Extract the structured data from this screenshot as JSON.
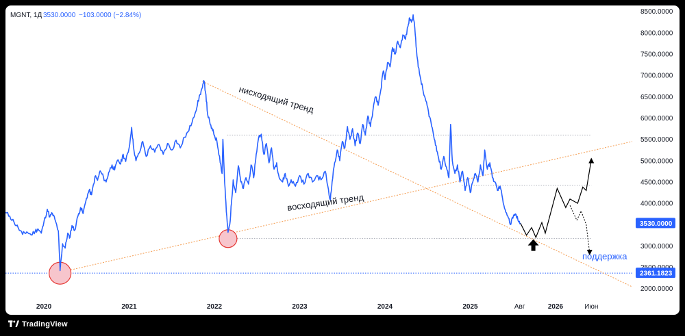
{
  "header": {
    "symbol": "MGNT, 1Д",
    "price": "3530.0000",
    "change": "−103.0000 (−2.84%)"
  },
  "brand": {
    "name": "TradingView"
  },
  "colors": {
    "price_line": "#2962ff",
    "trend_line": "#f5a35c",
    "level_line": "#b2b5be",
    "support_line": "#2962ff",
    "circle_fill": "#f7c5cc",
    "circle_stroke": "#e53935",
    "label_bg": "#2962ff"
  },
  "chart_data": {
    "type": "line",
    "title": "MGNT, 1Д",
    "x_axis": {
      "ticks": [
        {
          "label": "2020",
          "t": 2020.0
        },
        {
          "label": "2021",
          "t": 2021.0
        },
        {
          "label": "2022",
          "t": 2022.0
        },
        {
          "label": "2023",
          "t": 2023.0
        },
        {
          "label": "2024",
          "t": 2024.0
        },
        {
          "label": "2025",
          "t": 2025.0
        },
        {
          "label": "Авг",
          "t": 2025.58
        },
        {
          "label": "2026",
          "t": 2026.0
        },
        {
          "label": "Июн",
          "t": 2026.42
        }
      ],
      "range": [
        2019.55,
        2026.9
      ]
    },
    "y_axis": {
      "ticks": [
        2000,
        2500,
        3000,
        3500,
        4000,
        4500,
        5000,
        5500,
        6000,
        6500,
        7000,
        7500,
        8000,
        8500
      ],
      "tick_format": "0000",
      "range": [
        1850,
        8640
      ],
      "position": "right"
    },
    "grid": false,
    "series": [
      {
        "points": [
          [
            2019.55,
            3780
          ],
          [
            2019.6,
            3700
          ],
          [
            2019.65,
            3560
          ],
          [
            2019.7,
            3420
          ],
          [
            2019.75,
            3270
          ],
          [
            2019.8,
            3330
          ],
          [
            2019.85,
            3260
          ],
          [
            2019.9,
            3350
          ],
          [
            2019.93,
            3400
          ],
          [
            2019.97,
            3300
          ],
          [
            2020.0,
            3550
          ],
          [
            2020.04,
            3860
          ],
          [
            2020.07,
            3680
          ],
          [
            2020.1,
            3760
          ],
          [
            2020.13,
            3620
          ],
          [
            2020.17,
            3350
          ],
          [
            2020.19,
            2420
          ],
          [
            2020.2,
            2650
          ],
          [
            2020.22,
            3050
          ],
          [
            2020.25,
            2950
          ],
          [
            2020.28,
            3300
          ],
          [
            2020.3,
            3180
          ],
          [
            2020.33,
            3480
          ],
          [
            2020.36,
            3360
          ],
          [
            2020.4,
            3700
          ],
          [
            2020.43,
            3900
          ],
          [
            2020.46,
            3760
          ],
          [
            2020.5,
            4120
          ],
          [
            2020.53,
            4300
          ],
          [
            2020.56,
            4200
          ],
          [
            2020.6,
            4630
          ],
          [
            2020.63,
            4540
          ],
          [
            2020.66,
            4760
          ],
          [
            2020.7,
            4600
          ],
          [
            2020.73,
            4500
          ],
          [
            2020.76,
            4720
          ],
          [
            2020.8,
            4900
          ],
          [
            2020.83,
            4780
          ],
          [
            2020.87,
            5020
          ],
          [
            2020.9,
            4920
          ],
          [
            2020.93,
            5150
          ],
          [
            2020.96,
            4980
          ],
          [
            2021.0,
            5300
          ],
          [
            2021.03,
            5780
          ],
          [
            2021.05,
            5350
          ],
          [
            2021.08,
            5000
          ],
          [
            2021.12,
            5180
          ],
          [
            2021.16,
            5450
          ],
          [
            2021.2,
            5100
          ],
          [
            2021.25,
            5350
          ],
          [
            2021.3,
            5200
          ],
          [
            2021.35,
            5380
          ],
          [
            2021.4,
            5150
          ],
          [
            2021.45,
            5400
          ],
          [
            2021.5,
            5250
          ],
          [
            2021.55,
            5480
          ],
          [
            2021.6,
            5300
          ],
          [
            2021.65,
            5550
          ],
          [
            2021.7,
            5700
          ],
          [
            2021.75,
            6000
          ],
          [
            2021.8,
            6300
          ],
          [
            2021.83,
            6550
          ],
          [
            2021.86,
            6720
          ],
          [
            2021.88,
            6860
          ],
          [
            2021.9,
            6550
          ],
          [
            2021.92,
            6100
          ],
          [
            2021.95,
            5850
          ],
          [
            2021.98,
            5700
          ],
          [
            2022.0,
            5600
          ],
          [
            2022.03,
            5450
          ],
          [
            2022.06,
            5100
          ],
          [
            2022.09,
            4700
          ],
          [
            2022.1,
            5500
          ],
          [
            2022.12,
            4500
          ],
          [
            2022.14,
            3800
          ],
          [
            2022.16,
            3320
          ],
          [
            2022.18,
            3500
          ],
          [
            2022.2,
            4000
          ],
          [
            2022.22,
            4550
          ],
          [
            2022.25,
            4250
          ],
          [
            2022.28,
            4880
          ],
          [
            2022.31,
            4500
          ],
          [
            2022.34,
            4350
          ],
          [
            2022.37,
            4600
          ],
          [
            2022.4,
            4450
          ],
          [
            2022.43,
            4900
          ],
          [
            2022.46,
            4600
          ],
          [
            2022.49,
            5150
          ],
          [
            2022.52,
            5550
          ],
          [
            2022.55,
            5620
          ],
          [
            2022.58,
            5150
          ],
          [
            2022.61,
            5400
          ],
          [
            2022.64,
            4950
          ],
          [
            2022.67,
            5300
          ],
          [
            2022.7,
            4800
          ],
          [
            2022.73,
            4950
          ],
          [
            2022.76,
            4600
          ],
          [
            2022.8,
            4500
          ],
          [
            2022.83,
            4700
          ],
          [
            2022.87,
            4400
          ],
          [
            2022.9,
            4550
          ],
          [
            2022.95,
            4400
          ],
          [
            2023.0,
            4650
          ],
          [
            2023.05,
            4450
          ],
          [
            2023.1,
            4700
          ],
          [
            2023.15,
            4500
          ],
          [
            2023.2,
            4650
          ],
          [
            2023.25,
            4550
          ],
          [
            2023.3,
            4750
          ],
          [
            2023.33,
            4400
          ],
          [
            2023.36,
            4080
          ],
          [
            2023.38,
            4500
          ],
          [
            2023.41,
            4950
          ],
          [
            2023.44,
            5250
          ],
          [
            2023.47,
            5000
          ],
          [
            2023.5,
            5450
          ],
          [
            2023.53,
            5300
          ],
          [
            2023.56,
            5800
          ],
          [
            2023.59,
            5500
          ],
          [
            2023.62,
            5750
          ],
          [
            2023.65,
            5350
          ],
          [
            2023.68,
            5650
          ],
          [
            2023.71,
            5400
          ],
          [
            2023.74,
            5850
          ],
          [
            2023.77,
            5600
          ],
          [
            2023.8,
            6050
          ],
          [
            2023.83,
            5800
          ],
          [
            2023.86,
            6200
          ],
          [
            2023.89,
            6500
          ],
          [
            2023.92,
            6300
          ],
          [
            2023.95,
            6650
          ],
          [
            2023.98,
            7100
          ],
          [
            2024.0,
            6900
          ],
          [
            2024.03,
            7300
          ],
          [
            2024.06,
            7200
          ],
          [
            2024.09,
            7650
          ],
          [
            2024.12,
            7500
          ],
          [
            2024.15,
            7800
          ],
          [
            2024.18,
            7650
          ],
          [
            2024.21,
            7950
          ],
          [
            2024.24,
            7850
          ],
          [
            2024.27,
            8150
          ],
          [
            2024.29,
            8350
          ],
          [
            2024.31,
            8250
          ],
          [
            2024.33,
            8420
          ],
          [
            2024.35,
            8100
          ],
          [
            2024.37,
            7600
          ],
          [
            2024.39,
            7200
          ],
          [
            2024.42,
            6900
          ],
          [
            2024.45,
            6600
          ],
          [
            2024.48,
            6400
          ],
          [
            2024.51,
            6150
          ],
          [
            2024.54,
            5900
          ],
          [
            2024.57,
            5600
          ],
          [
            2024.6,
            5350
          ],
          [
            2024.63,
            5050
          ],
          [
            2024.66,
            4800
          ],
          [
            2024.69,
            5100
          ],
          [
            2024.72,
            4850
          ],
          [
            2024.75,
            4600
          ],
          [
            2024.77,
            5850
          ],
          [
            2024.79,
            5000
          ],
          [
            2024.82,
            4700
          ],
          [
            2024.85,
            4900
          ],
          [
            2024.88,
            4500
          ],
          [
            2024.91,
            4750
          ],
          [
            2024.94,
            4300
          ],
          [
            2024.97,
            4600
          ],
          [
            2025.0,
            4250
          ],
          [
            2025.03,
            4500
          ],
          [
            2025.06,
            4700
          ],
          [
            2025.09,
            4500
          ],
          [
            2025.12,
            4900
          ],
          [
            2025.15,
            4650
          ],
          [
            2025.17,
            5250
          ],
          [
            2025.2,
            4800
          ],
          [
            2025.23,
            4950
          ],
          [
            2025.26,
            4600
          ],
          [
            2025.29,
            4500
          ],
          [
            2025.32,
            4300
          ],
          [
            2025.35,
            4400
          ],
          [
            2025.38,
            4100
          ],
          [
            2025.41,
            3850
          ],
          [
            2025.44,
            3700
          ],
          [
            2025.47,
            3500
          ],
          [
            2025.5,
            3650
          ],
          [
            2025.53,
            3750
          ],
          [
            2025.56,
            3600
          ],
          [
            2025.59,
            3530
          ]
        ]
      }
    ],
    "horizontal_levels": [
      {
        "value": 5600,
        "style": "dotted",
        "from_t": 2022.15
      },
      {
        "value": 4420,
        "style": "dotted",
        "from_t": 2024.9
      },
      {
        "value": 3175,
        "style": "dotted",
        "from_t": 2022.1
      }
    ],
    "trend_lines": [
      {
        "name": "нисходящий тренд",
        "from": [
          2021.86,
          6860
        ],
        "to": [
          2026.9,
          2040
        ]
      },
      {
        "name": "восходящий тренд",
        "from": [
          2020.19,
          2380
        ],
        "to": [
          2026.9,
          5450
        ]
      }
    ],
    "support_level": {
      "value": 2361.1823,
      "label": "2361.1823"
    },
    "last_price": {
      "value": 3530,
      "label": "3530.0000"
    },
    "highlighted_lows": [
      {
        "t": 2020.19,
        "value": 2360
      },
      {
        "t": 2022.16,
        "value": 3170
      }
    ],
    "projection_solid": [
      [
        2025.59,
        3530
      ],
      [
        2025.66,
        3250
      ],
      [
        2025.72,
        3430
      ],
      [
        2025.77,
        3200
      ],
      [
        2025.84,
        3550
      ],
      [
        2025.88,
        3300
      ],
      [
        2026.02,
        4350
      ],
      [
        2026.12,
        3900
      ],
      [
        2026.17,
        4100
      ],
      [
        2026.26,
        4000
      ],
      [
        2026.32,
        4380
      ],
      [
        2026.36,
        4300
      ],
      [
        2026.42,
        5020
      ]
    ],
    "projection_dashed": [
      [
        2026.17,
        3950
      ],
      [
        2026.25,
        3600
      ],
      [
        2026.3,
        3820
      ],
      [
        2026.36,
        3500
      ],
      [
        2026.4,
        2830
      ]
    ],
    "marker_arrow": {
      "t": 2025.74,
      "value": 2980
    },
    "annotations": [
      "нисходящий тренд",
      "восходящий тренд",
      "поддержка"
    ]
  }
}
